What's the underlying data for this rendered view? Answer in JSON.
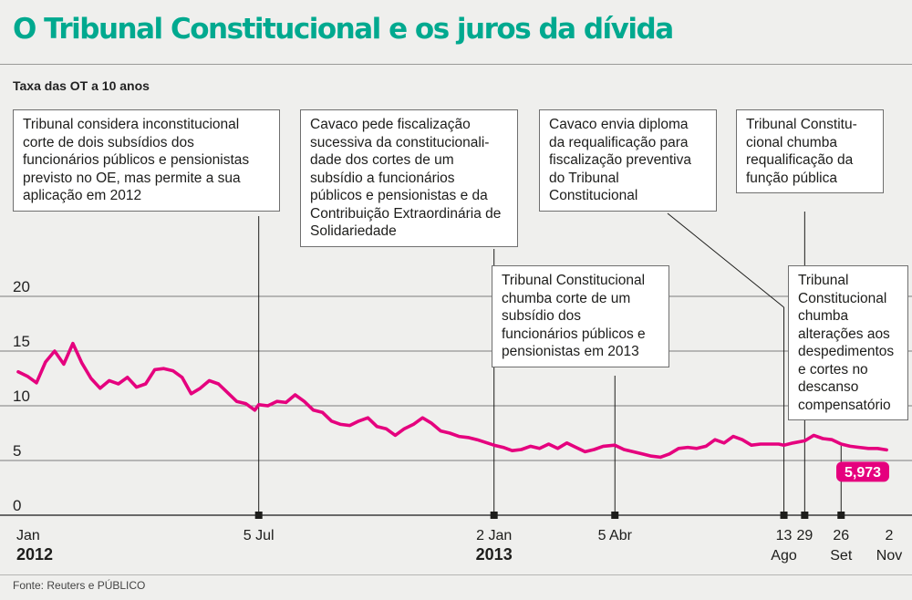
{
  "title": "O Tribunal Constitucional e os juros da dívida",
  "subtitle": "Taxa das OT a 10 anos",
  "source": "Fonte: Reuters e PÚBLICO",
  "colors": {
    "title": "#00a98f",
    "line": "#e5007e",
    "label_bg": "#e5007e"
  },
  "callouts": [
    {
      "id": "c1",
      "date": "2012-07-05",
      "text": "Tribunal considera inconstitucional corte de dois subsídios dos funcionários públicos e pensionistas previsto no OE, mas permite a sua aplicação em 2012"
    },
    {
      "id": "c2",
      "date": "2013-01-02",
      "text": "Cavaco pede fiscalização sucessiva da constitucionali-dade dos cortes de um subsídio a funcionários públicos e pensionistas e da Contribuição Extraordinária de Solidariedade"
    },
    {
      "id": "c3",
      "date": "2013-04-05",
      "text": "Tribunal Constitucional chumba corte de um subsídio dos funcionários públicos e pensionistas em 2013"
    },
    {
      "id": "c4",
      "date": "2013-08-13",
      "text": "Cavaco envia diploma da requalificação para fiscalização preventiva do Tribunal Constitucional"
    },
    {
      "id": "c5",
      "date": "2013-08-29",
      "text": "Tribunal Constitu-cional chumba requalificação da função pública"
    },
    {
      "id": "c6",
      "date": "2013-09-26",
      "text": "Tribunal Constitucional chumba alterações aos despedimentos e cortes no descanso compensatório"
    }
  ],
  "chart_data": {
    "type": "line",
    "title": "O Tribunal Constitucional e os juros da dívida",
    "subtitle": "Taxa das OT a 10 anos",
    "ylim": [
      0,
      20
    ],
    "yticks": [
      0,
      5,
      10,
      15,
      20
    ],
    "grid": true,
    "x_ticks": [
      {
        "date": "2012-01-02",
        "lines": [
          "Jan",
          "2012"
        ]
      },
      {
        "date": "2012-07-05",
        "lines": [
          "5 Jul"
        ]
      },
      {
        "date": "2013-01-02",
        "lines": [
          "2 Jan",
          "2013"
        ]
      },
      {
        "date": "2013-04-05",
        "lines": [
          "5 Abr"
        ]
      },
      {
        "date": "2013-08-13",
        "lines": [
          "13",
          "Ago"
        ]
      },
      {
        "date": "2013-08-29",
        "lines": [
          "29"
        ]
      },
      {
        "date": "2013-09-26",
        "lines": [
          "26",
          "Set"
        ]
      },
      {
        "date": "2013-11-02",
        "lines": [
          "2",
          "Nov"
        ]
      }
    ],
    "last_value_label": "5,973",
    "series": [
      {
        "points": [
          [
            "2012-01-02",
            13.1
          ],
          [
            "2012-01-09",
            12.7
          ],
          [
            "2012-01-16",
            12.1
          ],
          [
            "2012-01-23",
            14.0
          ],
          [
            "2012-01-30",
            15.0
          ],
          [
            "2012-02-06",
            13.8
          ],
          [
            "2012-02-13",
            15.7
          ],
          [
            "2012-02-20",
            13.9
          ],
          [
            "2012-02-27",
            12.5
          ],
          [
            "2012-03-05",
            11.6
          ],
          [
            "2012-03-12",
            12.3
          ],
          [
            "2012-03-19",
            12.0
          ],
          [
            "2012-03-26",
            12.6
          ],
          [
            "2012-04-02",
            11.7
          ],
          [
            "2012-04-09",
            12.0
          ],
          [
            "2012-04-16",
            13.3
          ],
          [
            "2012-04-23",
            13.4
          ],
          [
            "2012-04-30",
            13.2
          ],
          [
            "2012-05-07",
            12.6
          ],
          [
            "2012-05-14",
            11.1
          ],
          [
            "2012-05-21",
            11.6
          ],
          [
            "2012-05-28",
            12.3
          ],
          [
            "2012-06-04",
            12.0
          ],
          [
            "2012-06-11",
            11.2
          ],
          [
            "2012-06-18",
            10.4
          ],
          [
            "2012-06-25",
            10.2
          ],
          [
            "2012-07-02",
            9.6
          ],
          [
            "2012-07-05",
            10.1
          ],
          [
            "2012-07-12",
            10.0
          ],
          [
            "2012-07-19",
            10.4
          ],
          [
            "2012-07-26",
            10.3
          ],
          [
            "2012-08-02",
            11.0
          ],
          [
            "2012-08-09",
            10.4
          ],
          [
            "2012-08-16",
            9.6
          ],
          [
            "2012-08-23",
            9.4
          ],
          [
            "2012-08-30",
            8.6
          ],
          [
            "2012-09-06",
            8.3
          ],
          [
            "2012-09-13",
            8.2
          ],
          [
            "2012-09-20",
            8.6
          ],
          [
            "2012-09-27",
            8.9
          ],
          [
            "2012-10-04",
            8.1
          ],
          [
            "2012-10-11",
            7.9
          ],
          [
            "2012-10-18",
            7.3
          ],
          [
            "2012-10-25",
            7.9
          ],
          [
            "2012-11-01",
            8.3
          ],
          [
            "2012-11-08",
            8.9
          ],
          [
            "2012-11-15",
            8.4
          ],
          [
            "2012-11-22",
            7.7
          ],
          [
            "2012-11-29",
            7.5
          ],
          [
            "2012-12-06",
            7.2
          ],
          [
            "2012-12-13",
            7.1
          ],
          [
            "2012-12-20",
            6.9
          ],
          [
            "2013-01-02",
            6.4
          ],
          [
            "2013-01-09",
            6.2
          ],
          [
            "2013-01-16",
            5.9
          ],
          [
            "2013-01-23",
            6.0
          ],
          [
            "2013-01-30",
            6.3
          ],
          [
            "2013-02-06",
            6.1
          ],
          [
            "2013-02-13",
            6.5
          ],
          [
            "2013-02-20",
            6.1
          ],
          [
            "2013-02-27",
            6.6
          ],
          [
            "2013-03-06",
            6.2
          ],
          [
            "2013-03-13",
            5.8
          ],
          [
            "2013-03-20",
            6.0
          ],
          [
            "2013-03-27",
            6.3
          ],
          [
            "2013-04-05",
            6.4
          ],
          [
            "2013-04-12",
            6.0
          ],
          [
            "2013-04-19",
            5.8
          ],
          [
            "2013-04-26",
            5.6
          ],
          [
            "2013-05-03",
            5.4
          ],
          [
            "2013-05-10",
            5.3
          ],
          [
            "2013-05-17",
            5.6
          ],
          [
            "2013-05-24",
            6.1
          ],
          [
            "2013-05-31",
            6.2
          ],
          [
            "2013-06-07",
            6.1
          ],
          [
            "2013-06-14",
            6.3
          ],
          [
            "2013-06-21",
            6.9
          ],
          [
            "2013-06-28",
            6.6
          ],
          [
            "2013-07-05",
            7.2
          ],
          [
            "2013-07-12",
            6.9
          ],
          [
            "2013-07-19",
            6.4
          ],
          [
            "2013-07-26",
            6.5
          ],
          [
            "2013-08-02",
            6.5
          ],
          [
            "2013-08-09",
            6.5
          ],
          [
            "2013-08-13",
            6.4
          ],
          [
            "2013-08-20",
            6.6
          ],
          [
            "2013-08-29",
            6.8
          ],
          [
            "2013-09-05",
            7.3
          ],
          [
            "2013-09-12",
            7.0
          ],
          [
            "2013-09-19",
            6.9
          ],
          [
            "2013-09-26",
            6.5
          ],
          [
            "2013-10-03",
            6.3
          ],
          [
            "2013-10-10",
            6.2
          ],
          [
            "2013-10-17",
            6.1
          ],
          [
            "2013-10-24",
            6.1
          ],
          [
            "2013-10-31",
            5.97
          ]
        ]
      }
    ]
  }
}
